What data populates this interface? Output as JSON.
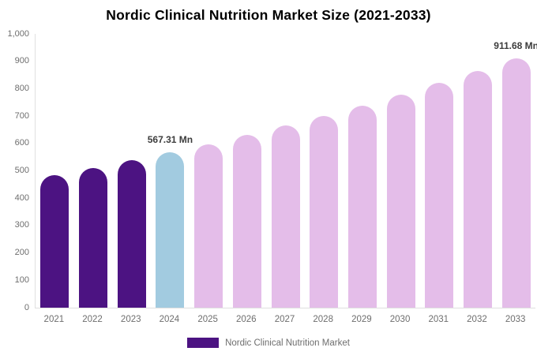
{
  "title": "Nordic Clinical Nutrition Market Size (2021-2033)",
  "legend": {
    "label": "Nordic Clinical Nutrition Market",
    "swatch_color": "#4C1382"
  },
  "colors": {
    "historical_bar": "#4C1382",
    "base_year_bar": "#A2CBE0",
    "forecast_bar": "#E4BDE9",
    "axis_line": "#E0E0E0",
    "tick_text": "#6E6E6E",
    "data_label_text": "#3C3C3C"
  },
  "chart_data": {
    "type": "bar",
    "title": "Nordic Clinical Nutrition Market Size (2021-2033)",
    "categories": [
      "2021",
      "2022",
      "2023",
      "2024",
      "2025",
      "2026",
      "2027",
      "2028",
      "2029",
      "2030",
      "2031",
      "2032",
      "2033"
    ],
    "values": [
      484.5,
      510.7,
      538.3,
      567.31,
      598.0,
      630.3,
      664.4,
      700.3,
      738.2,
      778.1,
      820.2,
      864.6,
      911.68
    ],
    "unit": "Mn",
    "bar_colors": [
      "#4C1382",
      "#4C1382",
      "#4C1382",
      "#A2CBE0",
      "#E4BDE9",
      "#E4BDE9",
      "#E4BDE9",
      "#E4BDE9",
      "#E4BDE9",
      "#E4BDE9",
      "#E4BDE9",
      "#E4BDE9",
      "#E4BDE9"
    ],
    "ylim": [
      0,
      1000
    ],
    "ytick_values": [
      1000,
      900,
      800,
      700,
      600,
      500,
      400,
      300,
      200,
      100,
      0
    ],
    "ytick_labels": [
      "1,000",
      "900",
      "800",
      "700",
      "600",
      "500",
      "400",
      "300",
      "200",
      "100",
      "0"
    ],
    "annotations": [
      {
        "index": 3,
        "text": "567.31 Mn"
      },
      {
        "index": 12,
        "text": "911.68 Mn"
      }
    ],
    "legend_entries": [
      "Nordic Clinical Nutrition Market"
    ],
    "grid": false,
    "legend_position": "bottom",
    "xlabel": "",
    "ylabel": ""
  }
}
